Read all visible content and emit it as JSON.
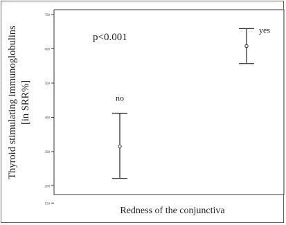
{
  "chart_data": {
    "type": "errorbar",
    "title": "",
    "xlabel": "Redness of the conjunctiva",
    "ylabel": "Thyroid stimulating immunoglobulins [in SRR%]",
    "ylim": [
      140,
      710
    ],
    "yticks": [
      700,
      600,
      500,
      400,
      300,
      200,
      150
    ],
    "ytick_labels": [
      "700",
      "600",
      "500",
      "400",
      "300",
      "200",
      "150"
    ],
    "annotation": "p<0.001",
    "categories": [
      "no",
      "yes"
    ],
    "series": [
      {
        "values": [
          315,
          608
        ],
        "lower": [
          222,
          557
        ],
        "upper": [
          412,
          659
        ]
      }
    ],
    "grid": false
  }
}
